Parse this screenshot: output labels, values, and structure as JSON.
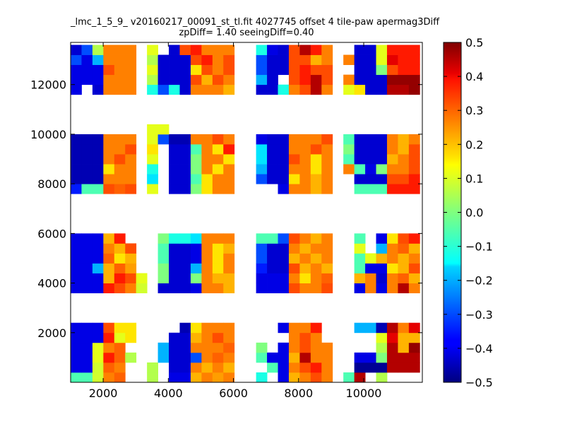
{
  "chart_data": {
    "type": "heatmap",
    "title_lines": [
      "_lmc_1_5_9_ v20160217_00091_st_tl.fit 4027745 offset 4 tile-paw apermag3Diff",
      "zpDiff= 1.40 seeingDiff=0.40"
    ],
    "xlim": [
      1000,
      11800
    ],
    "ylim": [
      0,
      13700
    ],
    "xticks": [
      2000,
      4000,
      6000,
      8000,
      10000
    ],
    "yticks": [
      2000,
      4000,
      6000,
      8000,
      10000,
      12000
    ],
    "colorbar": {
      "colormap": "jet",
      "vmin": -0.5,
      "vmax": 0.5,
      "ticks": [
        "0.5",
        "0.4",
        "0.3",
        "0.2",
        "0.1",
        "0.0",
        "−0.1",
        "−0.2",
        "−0.3",
        "−0.4",
        "−0.5"
      ]
    },
    "cell_size": [
      335,
      400
    ],
    "col_x0": [
      1000,
      1335,
      1670,
      2005,
      2340,
      2675,
      3010,
      3345,
      3680,
      4015,
      4350,
      4685,
      5020,
      5355,
      5690,
      6025,
      6360,
      6695,
      7030,
      7365,
      7700,
      8035,
      8370,
      8705,
      9040,
      9375,
      9710,
      10045,
      10380,
      10715,
      11050,
      11385
    ],
    "row_y0": [
      0,
      400,
      800,
      1200,
      1600,
      2000,
      3600,
      4000,
      4400,
      4800,
      5200,
      5600,
      7600,
      8000,
      8400,
      8800,
      9200,
      9600,
      10000,
      11600,
      12000,
      12400,
      12800,
      13200
    ],
    "grid_values": [
      [
        -0.05,
        -0.05,
        0.08,
        0.25,
        0.28,
        null,
        null,
        0.05,
        null,
        -0.4,
        -0.4,
        0.2,
        0.25,
        0.22,
        0.25,
        null,
        null,
        -0.1,
        null,
        -0.4,
        0.2,
        0.25,
        0.3,
        0.25,
        null,
        -0.05,
        0.45,
        null,
        0.05,
        null,
        null,
        null
      ],
      [
        -0.4,
        -0.4,
        0.08,
        0.28,
        0.25,
        null,
        null,
        0.05,
        null,
        -0.42,
        -0.42,
        0.25,
        0.2,
        0.25,
        0.2,
        null,
        null,
        null,
        -0.05,
        -0.4,
        0.25,
        0.3,
        0.35,
        0.25,
        null,
        null,
        -0.48,
        -0.48,
        -0.48,
        0.45,
        0.45,
        0.45
      ],
      [
        -0.4,
        -0.4,
        0.1,
        0.35,
        0.28,
        0.05,
        null,
        null,
        -0.2,
        -0.42,
        -0.42,
        -0.3,
        0.25,
        0.28,
        0.25,
        null,
        null,
        -0.05,
        -0.4,
        -0.4,
        0.2,
        0.45,
        0.25,
        0.25,
        null,
        null,
        -0.4,
        -0.4,
        0.0,
        0.45,
        0.45,
        0.45
      ],
      [
        -0.4,
        -0.4,
        0.1,
        0.25,
        0.28,
        null,
        null,
        null,
        -0.2,
        -0.42,
        -0.42,
        0.25,
        0.25,
        0.25,
        0.28,
        null,
        null,
        0.0,
        null,
        -0.4,
        0.25,
        0.3,
        0.25,
        0.25,
        null,
        null,
        null,
        null,
        0.05,
        0.45,
        0.2,
        0.48
      ],
      [
        -0.4,
        -0.4,
        -0.4,
        0.35,
        0.1,
        0.15,
        null,
        null,
        null,
        -0.42,
        -0.42,
        0.2,
        0.25,
        0.3,
        0.25,
        null,
        null,
        null,
        null,
        null,
        0.25,
        0.3,
        0.25,
        null,
        null,
        null,
        null,
        null,
        0.1,
        0.4,
        0.2,
        0.2
      ],
      [
        -0.4,
        -0.4,
        -0.4,
        0.3,
        0.15,
        0.15,
        null,
        null,
        null,
        null,
        -0.45,
        0.15,
        0.25,
        0.25,
        0.25,
        null,
        null,
        null,
        null,
        -0.4,
        0.25,
        0.25,
        0.35,
        null,
        null,
        null,
        -0.2,
        -0.2,
        -0.45,
        0.45,
        0.25,
        0.4
      ],
      [
        -0.4,
        -0.4,
        -0.4,
        0.35,
        0.3,
        0.25,
        0.08,
        null,
        -0.42,
        -0.42,
        -0.42,
        -0.4,
        0.25,
        0.25,
        0.2,
        null,
        null,
        -0.4,
        -0.4,
        -0.4,
        0.3,
        0.25,
        0.25,
        0.3,
        null,
        null,
        -0.4,
        0.25,
        -0.4,
        0.25,
        0.45,
        0.25
      ],
      [
        -0.4,
        -0.4,
        -0.4,
        0.2,
        0.35,
        0.3,
        0.1,
        null,
        0.0,
        -0.42,
        -0.42,
        0.0,
        0.25,
        0.2,
        0.2,
        null,
        null,
        -0.4,
        -0.4,
        -0.4,
        0.25,
        0.15,
        0.25,
        0.28,
        null,
        null,
        0.2,
        0.25,
        -0.42,
        0.25,
        0.28,
        0.2
      ],
      [
        -0.4,
        -0.4,
        -0.2,
        0.2,
        0.28,
        0.22,
        null,
        null,
        0.0,
        -0.42,
        -0.42,
        -0.2,
        0.25,
        0.15,
        0.25,
        null,
        null,
        -0.35,
        -0.42,
        -0.42,
        0.3,
        0.2,
        0.25,
        0.2,
        null,
        null,
        -0.05,
        -0.4,
        -0.4,
        0.15,
        0.2,
        0.3
      ],
      [
        -0.4,
        -0.4,
        -0.4,
        0.28,
        0.15,
        0.2,
        null,
        null,
        -0.05,
        -0.42,
        -0.42,
        -0.4,
        0.25,
        0.15,
        0.25,
        null,
        null,
        -0.3,
        -0.42,
        -0.42,
        0.2,
        0.25,
        0.2,
        0.25,
        null,
        null,
        -0.05,
        0.1,
        0.2,
        0.25,
        0.2,
        0.25
      ],
      [
        -0.4,
        -0.4,
        -0.4,
        0.25,
        0.2,
        0.3,
        null,
        null,
        -0.05,
        -0.42,
        -0.42,
        -0.4,
        0.25,
        0.15,
        0.2,
        null,
        null,
        -0.3,
        -0.42,
        -0.42,
        0.25,
        0.2,
        0.25,
        0.25,
        null,
        null,
        0.1,
        null,
        -0.2,
        0.25,
        0.28,
        0.2
      ],
      [
        -0.4,
        -0.4,
        -0.4,
        0.2,
        0.35,
        null,
        null,
        null,
        0.0,
        -0.1,
        -0.1,
        -0.15,
        0.25,
        0.25,
        0.25,
        null,
        null,
        -0.05,
        -0.05,
        -0.3,
        0.3,
        0.25,
        0.2,
        0.25,
        null,
        null,
        -0.05,
        null,
        -0.4,
        0.15,
        0.3,
        0.35
      ],
      [
        -0.35,
        -0.05,
        -0.05,
        0.3,
        0.28,
        0.3,
        null,
        0.1,
        null,
        -0.42,
        -0.42,
        0.0,
        0.15,
        0.25,
        0.25,
        null,
        null,
        null,
        null,
        -0.4,
        0.25,
        0.25,
        0.2,
        0.25,
        null,
        null,
        -0.05,
        -0.05,
        -0.05,
        0.35,
        0.35,
        0.35
      ],
      [
        -0.45,
        -0.45,
        -0.45,
        0.25,
        0.25,
        0.25,
        null,
        -0.15,
        null,
        -0.42,
        -0.42,
        -0.05,
        0.15,
        0.25,
        0.25,
        null,
        null,
        -0.3,
        -0.42,
        -0.42,
        0.15,
        0.25,
        0.2,
        0.25,
        null,
        null,
        -0.42,
        -0.42,
        -0.42,
        0.3,
        0.3,
        0.35
      ],
      [
        -0.45,
        -0.45,
        -0.45,
        0.15,
        0.25,
        0.25,
        null,
        -0.1,
        null,
        -0.42,
        -0.42,
        0.0,
        0.25,
        0.15,
        0.25,
        null,
        null,
        -0.2,
        -0.42,
        -0.42,
        0.25,
        0.25,
        0.15,
        0.25,
        null,
        0.25,
        -0.05,
        -0.4,
        0.0,
        0.25,
        0.25,
        0.3
      ],
      [
        -0.45,
        -0.45,
        -0.45,
        0.25,
        0.3,
        0.25,
        null,
        0.1,
        null,
        -0.42,
        -0.42,
        0.0,
        0.25,
        0.25,
        0.15,
        null,
        null,
        -0.15,
        -0.42,
        -0.42,
        0.3,
        0.25,
        0.15,
        0.25,
        null,
        -0.05,
        -0.42,
        -0.42,
        -0.42,
        0.2,
        0.25,
        0.3
      ],
      [
        -0.45,
        -0.45,
        -0.45,
        0.25,
        0.25,
        0.3,
        null,
        0.15,
        null,
        -0.42,
        -0.42,
        -0.05,
        0.25,
        0.15,
        0.35,
        null,
        null,
        -0.15,
        -0.42,
        -0.42,
        0.25,
        0.25,
        0.3,
        0.25,
        null,
        0.0,
        -0.42,
        -0.42,
        -0.42,
        0.25,
        0.2,
        0.3
      ],
      [
        -0.45,
        -0.45,
        -0.45,
        0.25,
        0.25,
        0.25,
        null,
        0.1,
        -0.3,
        -0.45,
        -0.45,
        0.25,
        0.25,
        0.3,
        0.25,
        null,
        null,
        -0.4,
        -0.42,
        -0.42,
        0.25,
        0.25,
        0.25,
        0.3,
        null,
        -0.05,
        -0.42,
        -0.42,
        -0.42,
        0.25,
        0.2,
        0.25
      ],
      [
        null,
        null,
        null,
        null,
        null,
        null,
        null,
        0.1,
        0.1,
        null,
        null,
        null,
        null,
        null,
        null,
        null,
        null,
        null,
        null,
        null,
        null,
        null,
        null,
        null,
        null,
        null,
        null,
        null,
        null,
        null,
        null,
        null
      ],
      [
        -0.4,
        null,
        -0.42,
        0.25,
        0.25,
        0.25,
        null,
        -0.1,
        -0.3,
        -0.1,
        -0.42,
        0.25,
        0.25,
        0.25,
        0.2,
        null,
        null,
        -0.42,
        -0.42,
        -0.1,
        0.25,
        0.3,
        0.45,
        0.25,
        null,
        0.1,
        0.15,
        -0.42,
        -0.42,
        0.45,
        0.45,
        0.48
      ],
      [
        -0.4,
        -0.4,
        -0.4,
        0.25,
        0.25,
        0.25,
        null,
        0.05,
        -0.42,
        -0.42,
        -0.42,
        0.3,
        0.2,
        0.3,
        0.25,
        null,
        null,
        -0.2,
        -0.42,
        null,
        0.3,
        0.35,
        0.45,
        0.3,
        null,
        0.25,
        -0.42,
        -0.42,
        -0.42,
        0.48,
        0.48,
        0.48
      ],
      [
        -0.4,
        -0.4,
        -0.4,
        0.3,
        0.25,
        0.25,
        null,
        0.1,
        -0.42,
        -0.42,
        -0.42,
        0.15,
        0.3,
        0.25,
        0.3,
        null,
        null,
        -0.3,
        -0.42,
        -0.42,
        0.3,
        0.35,
        0.3,
        0.3,
        null,
        null,
        -0.42,
        -0.42,
        0.0,
        0.3,
        0.35,
        0.35
      ],
      [
        -0.3,
        -0.4,
        -0.2,
        0.25,
        0.25,
        0.25,
        null,
        0.05,
        -0.42,
        -0.42,
        -0.42,
        0.3,
        0.35,
        0.25,
        0.3,
        null,
        null,
        -0.3,
        -0.42,
        -0.42,
        0.3,
        0.3,
        0.2,
        0.25,
        null,
        0.25,
        -0.42,
        -0.42,
        0.1,
        0.4,
        0.35,
        0.35
      ],
      [
        -0.42,
        -0.3,
        0.05,
        0.25,
        0.25,
        0.25,
        null,
        0.1,
        null,
        -0.42,
        0.3,
        0.35,
        0.25,
        0.25,
        0.25,
        null,
        null,
        -0.1,
        -0.4,
        -0.42,
        0.3,
        0.45,
        0.35,
        0.25,
        null,
        null,
        -0.42,
        -0.42,
        0.1,
        0.35,
        0.35,
        0.35
      ]
    ]
  }
}
